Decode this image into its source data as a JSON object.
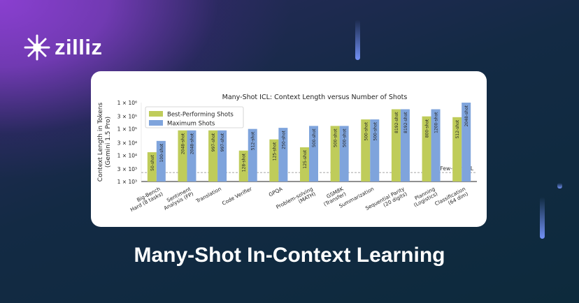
{
  "brand": {
    "name": "zilliz"
  },
  "headline": "Many-Shot In-Context Learning",
  "chart_data": {
    "type": "bar",
    "title": "Many-Shot ICL: Context Length versus Number of Shots",
    "ylabel": "Context Length in Tokens (Gemini 1.5 Pro)",
    "ylabel_lines": [
      "Context Length in Tokens",
      "(Gemini 1.5 Pro)"
    ],
    "yscale": "log",
    "ylim": [
      1000,
      1000000
    ],
    "yticks": [
      1000,
      3000,
      10000,
      30000,
      100000,
      300000,
      1000000
    ],
    "ytick_labels": [
      "1 × 10³",
      "3 × 10³",
      "1 × 10⁴",
      "3 × 10⁴",
      "1 × 10⁵",
      "3 × 10⁵",
      "1 × 10⁶"
    ],
    "legend_position": "top-left",
    "reference_line": {
      "label": "Few-shot ICL",
      "value": 2200
    },
    "categories": [
      [
        "Big-Bench",
        "Hard (8 tasks)"
      ],
      [
        "Sentiment",
        "Analysis (FP)"
      ],
      [
        "Translation"
      ],
      [
        "Code Verifier"
      ],
      [
        "GPQA"
      ],
      [
        "Problem-solving",
        "(MATH)"
      ],
      [
        "GSM8K",
        "(Transfer)"
      ],
      [
        "Summarization"
      ],
      [
        "Sequential Parity",
        "(20 digits)"
      ],
      [
        "Planning",
        "(Logistics)"
      ],
      [
        "Classification",
        "(64 dim)"
      ]
    ],
    "series": [
      {
        "name": "Best-Performing Shots",
        "color": "#bfcc5a",
        "values": [
          13000,
          88000,
          88000,
          15000,
          40000,
          20000,
          130000,
          230000,
          560000,
          300000,
          280000
        ],
        "labels": [
          "50-shot",
          "2048-shot",
          "997-shot",
          "128-shot",
          "125-shot",
          "125-shot",
          "500-shot",
          "500-shot",
          "8192-shot",
          "800-shot",
          "512-shot"
        ]
      },
      {
        "name": "Maximum Shots",
        "color": "#7fa4dc",
        "values": [
          35000,
          88000,
          88000,
          100000,
          110000,
          130000,
          130000,
          230000,
          560000,
          560000,
          1000000
        ],
        "labels": [
          "100-shot",
          "2048-shot",
          "997-shot",
          "512-shot",
          "250-shot",
          "500-shot",
          "500-shot",
          "500-shot",
          "8192-shot",
          "1200-shot",
          "2048-shot"
        ]
      }
    ]
  }
}
